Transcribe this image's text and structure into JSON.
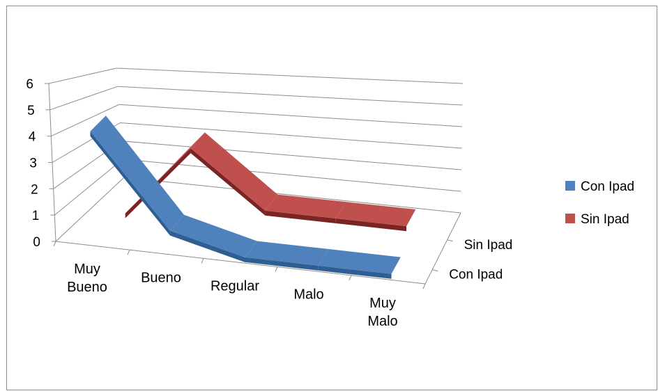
{
  "chart_data": {
    "type": "line",
    "style": "3d-ribbon",
    "categories": [
      "Muy Bueno",
      "Bueno",
      "Regular",
      "Malo",
      "Muy Malo"
    ],
    "category_lines": [
      [
        "Muy",
        "Bueno"
      ],
      [
        "Bueno"
      ],
      [
        "Regular"
      ],
      [
        "Malo"
      ],
      [
        "Muy",
        "Malo"
      ]
    ],
    "series": [
      {
        "name": "Con Ipad",
        "color": "#4f81bd",
        "side_color": "#2f5e93",
        "values": [
          6,
          1,
          0,
          0,
          0
        ]
      },
      {
        "name": "Sin Ipad",
        "color": "#c0504d",
        "side_color": "#7a2424",
        "values": [
          0,
          4,
          1,
          1,
          1
        ]
      }
    ],
    "depth_labels": [
      "Sin Ipad",
      "Con Ipad"
    ],
    "ylim": [
      0,
      6
    ],
    "yticks": [
      "0",
      "1",
      "2",
      "3",
      "4",
      "5",
      "6"
    ],
    "grid": true,
    "legend_position": "right",
    "title": "",
    "xlabel": "",
    "ylabel": ""
  }
}
